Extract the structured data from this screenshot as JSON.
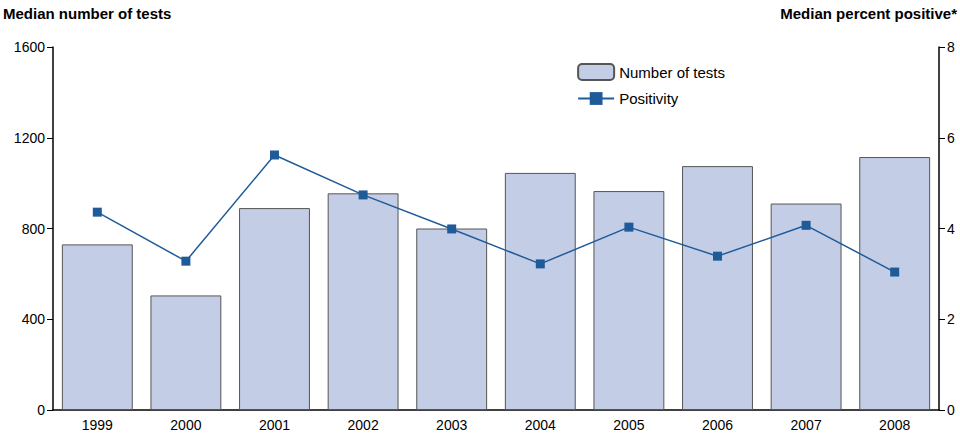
{
  "chart_data": {
    "type": "bar",
    "categories": [
      "1999",
      "2000",
      "2001",
      "2002",
      "2003",
      "2004",
      "2005",
      "2006",
      "2007",
      "2008"
    ],
    "series": [
      {
        "name": "Number of tests",
        "type": "bar",
        "color": "#c3cde6",
        "values": [
          730,
          505,
          890,
          955,
          800,
          1045,
          965,
          1075,
          910,
          1115
        ]
      },
      {
        "name": "Positivity",
        "type": "line",
        "color": "#1f5b99",
        "marker": "square",
        "axis": "y2",
        "values": [
          4.36,
          3.28,
          5.62,
          4.74,
          3.99,
          3.22,
          4.03,
          3.39,
          4.07,
          3.04
        ]
      }
    ],
    "y_label": "Median number of tests",
    "y2_label": "Median percent positive*",
    "ylim": [
      0,
      1600
    ],
    "yticks": [
      0,
      400,
      800,
      1200,
      1600
    ],
    "y2lim": [
      0,
      8
    ],
    "y2ticks": [
      0,
      2,
      4,
      6,
      8
    ],
    "grid": false,
    "legend": "upper right"
  }
}
